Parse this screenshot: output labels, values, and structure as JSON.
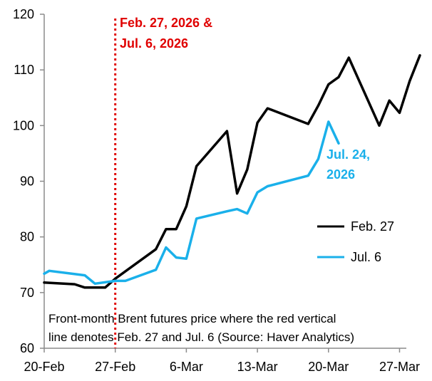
{
  "chart_data": {
    "type": "line",
    "x_unit": "date",
    "y_range": [
      60,
      120
    ],
    "y_ticks": [
      60,
      70,
      80,
      90,
      100,
      110,
      120
    ],
    "x_range": [
      "2026-02-20",
      "2026-03-27"
    ],
    "x_ticks": [
      {
        "date": "2026-02-20",
        "label": "20-Feb"
      },
      {
        "date": "2026-02-27",
        "label": "27-Feb"
      },
      {
        "date": "2026-03-06",
        "label": "6-Mar"
      },
      {
        "date": "2026-03-13",
        "label": "13-Mar"
      },
      {
        "date": "2026-03-20",
        "label": "20-Mar"
      },
      {
        "date": "2026-03-27",
        "label": "27-Mar"
      }
    ],
    "grid": false,
    "legend_position": "right",
    "vertical_line": {
      "date": "2026-02-27",
      "color": "#e00000"
    },
    "annotations": {
      "vline_label_line1": "Feb. 27, 2026 &",
      "vline_label_line2": "Jul. 6, 2026",
      "end_label_line1": "Jul. 24,",
      "end_label_line2": "2026"
    },
    "note_line1": "Front-month Brent futures price where the red vertical",
    "note_line2": "line denotes Feb. 27 and Jul. 6 (Source: Haver Analytics)",
    "series": [
      {
        "name": "Feb. 27",
        "color": "#000000",
        "points": [
          [
            "2026-02-20",
            71.8
          ],
          [
            "2026-02-23",
            71.5
          ],
          [
            "2026-02-24",
            70.9
          ],
          [
            "2026-02-26",
            70.9
          ],
          [
            "2026-02-27",
            72.5
          ],
          [
            "2026-03-03",
            77.8
          ],
          [
            "2026-03-04",
            81.4
          ],
          [
            "2026-03-05",
            81.4
          ],
          [
            "2026-03-06",
            85.5
          ],
          [
            "2026-03-07",
            92.7
          ],
          [
            "2026-03-10",
            99.0
          ],
          [
            "2026-03-11",
            87.8
          ],
          [
            "2026-03-12",
            92.1
          ],
          [
            "2026-03-13",
            100.5
          ],
          [
            "2026-03-14",
            103.1
          ],
          [
            "2026-03-18",
            100.3
          ],
          [
            "2026-03-19",
            103.6
          ],
          [
            "2026-03-20",
            107.4
          ],
          [
            "2026-03-21",
            108.7
          ],
          [
            "2026-03-22",
            112.2
          ],
          [
            "2026-03-25",
            100.0
          ],
          [
            "2026-03-26",
            104.5
          ],
          [
            "2026-03-27",
            102.3
          ],
          [
            "2026-03-28",
            108.0
          ],
          [
            "2026-03-29",
            112.6
          ]
        ]
      },
      {
        "name": "Jul. 6",
        "color": "#1ab0ea",
        "points": [
          [
            "2026-02-20",
            73.4
          ],
          [
            "2026-02-20.5",
            73.9
          ],
          [
            "2026-02-24",
            73.1
          ],
          [
            "2026-02-25",
            71.6
          ],
          [
            "2026-02-27",
            72.1
          ],
          [
            "2026-02-28",
            72.1
          ],
          [
            "2026-03-03",
            74.1
          ],
          [
            "2026-03-04",
            78.1
          ],
          [
            "2026-03-05",
            76.3
          ],
          [
            "2026-03-06",
            76.1
          ],
          [
            "2026-03-07",
            83.3
          ],
          [
            "2026-03-10",
            84.6
          ],
          [
            "2026-03-11",
            85.0
          ],
          [
            "2026-03-12",
            84.2
          ],
          [
            "2026-03-13",
            88.0
          ],
          [
            "2026-03-14",
            89.1
          ],
          [
            "2026-03-18",
            91.0
          ],
          [
            "2026-03-19",
            94.0
          ],
          [
            "2026-03-20",
            100.7
          ],
          [
            "2026-03-21",
            96.8
          ]
        ]
      }
    ]
  }
}
